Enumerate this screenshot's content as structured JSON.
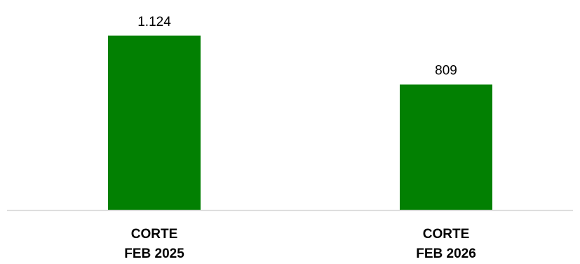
{
  "chart_data": {
    "type": "bar",
    "categories": [
      [
        "CORTE",
        "FEB 2025"
      ],
      [
        "CORTE",
        "FEB 2026"
      ]
    ],
    "values": [
      1124,
      809
    ],
    "value_labels": [
      "1.124",
      "809"
    ],
    "ylim": [
      0,
      1150
    ],
    "grid": false,
    "legend": "none",
    "bar_color": "#028002",
    "axis_color": "#d9d9d9"
  }
}
